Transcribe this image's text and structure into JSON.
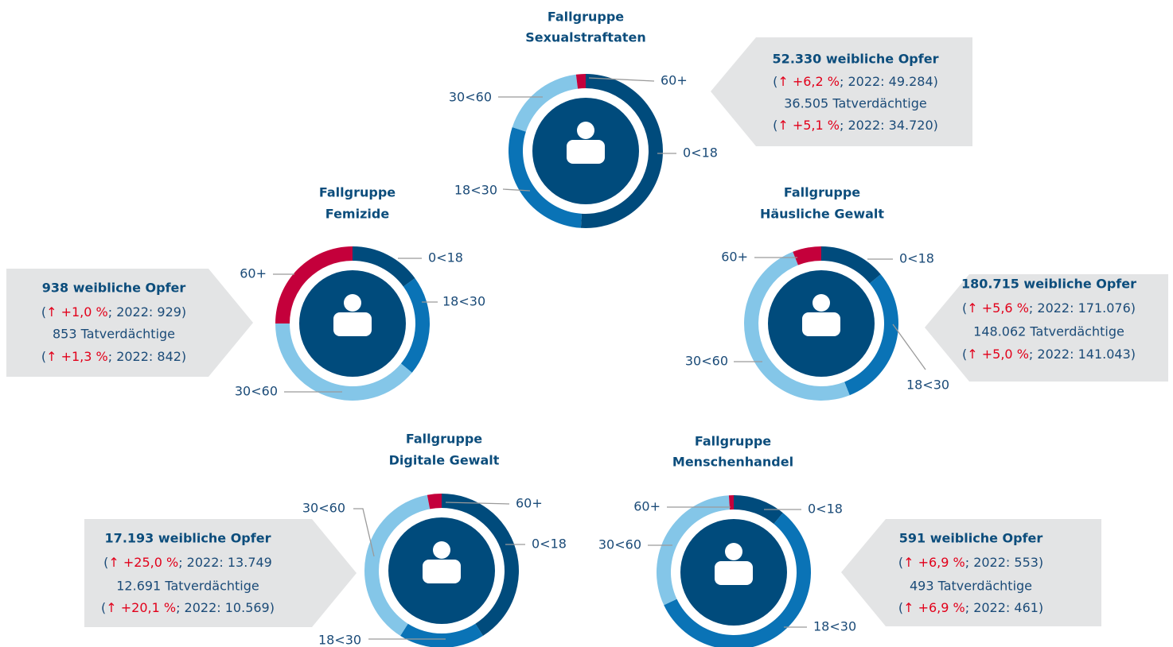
{
  "chart_data": [
    {
      "type": "donut",
      "title": [
        "Fallgruppe",
        "Sexualstraftaten"
      ],
      "categories": [
        "0<18",
        "18<30",
        "30<60",
        "60+"
      ],
      "values": [
        51,
        29,
        18,
        2
      ],
      "colors": [
        "#004b7c",
        "#0a73b6",
        "#84c6e8",
        "#c4003b"
      ],
      "victims": "52.330 weibliche Opfer",
      "victims_change": [
        "(",
        "↑ +6,2 %",
        "; 2022: 49.284)"
      ],
      "suspects": "36.505 Tatverdächtige",
      "suspects_change": [
        "(",
        "↑ +5,1 %",
        "; 2022: 34.720)"
      ]
    },
    {
      "type": "donut",
      "title": [
        "Fallgruppe",
        "Femizide"
      ],
      "categories": [
        "0<18",
        "18<30",
        "30<60",
        "60+"
      ],
      "values": [
        15,
        21,
        39,
        25
      ],
      "colors": [
        "#004b7c",
        "#0a73b6",
        "#84c6e8",
        "#c4003b"
      ],
      "victims": "938 weibliche Opfer",
      "victims_change": [
        "(",
        "↑ +1,0 %",
        "; 2022: 929)"
      ],
      "suspects": "853 Tatverdächtige",
      "suspects_change": [
        "(",
        "↑ +1,3 %",
        "; 2022: 842)"
      ]
    },
    {
      "type": "donut",
      "title": [
        "Fallgruppe",
        "Häusliche Gewalt"
      ],
      "categories": [
        "0<18",
        "18<30",
        "30<60",
        "60+"
      ],
      "values": [
        14,
        30,
        50,
        6
      ],
      "colors": [
        "#004b7c",
        "#0a73b6",
        "#84c6e8",
        "#c4003b"
      ],
      "victims": "180.715 weibliche Opfer",
      "victims_change": [
        "(",
        "↑ +5,6 %",
        "; 2022: 171.076)"
      ],
      "suspects": "148.062 Tatverdächtige",
      "suspects_change": [
        "(",
        "↑ +5,0 %",
        "; 2022: 141.043)"
      ]
    },
    {
      "type": "donut",
      "title": [
        "Fallgruppe",
        "Digitale Gewalt"
      ],
      "categories": [
        "0<18",
        "18<30",
        "30<60",
        "60+"
      ],
      "values": [
        41,
        18,
        38,
        3
      ],
      "colors": [
        "#004b7c",
        "#0a73b6",
        "#84c6e8",
        "#c4003b"
      ],
      "victims": "17.193 weibliche Opfer",
      "victims_change": [
        "(",
        "↑ +25,0 %",
        "; 2022: 13.749"
      ],
      "suspects": "12.691 Tatverdächtige",
      "suspects_change": [
        "(",
        "↑ +20,1 %",
        "; 2022: 10.569)"
      ]
    },
    {
      "type": "donut",
      "title": [
        "Fallgruppe",
        "Menschenhandel"
      ],
      "categories": [
        "0<18",
        "18<30",
        "30<60",
        "60+"
      ],
      "values": [
        11,
        57,
        31,
        1
      ],
      "colors": [
        "#004b7c",
        "#0a73b6",
        "#84c6e8",
        "#c4003b"
      ],
      "victims": "591 weibliche Opfer",
      "victims_change": [
        "(",
        "↑ +6,9 %",
        "; 2022: 553)"
      ],
      "suspects": "493 Tatverdächtige",
      "suspects_change": [
        "(",
        "↑ +6,9 %",
        "; 2022: 461)"
      ]
    }
  ]
}
